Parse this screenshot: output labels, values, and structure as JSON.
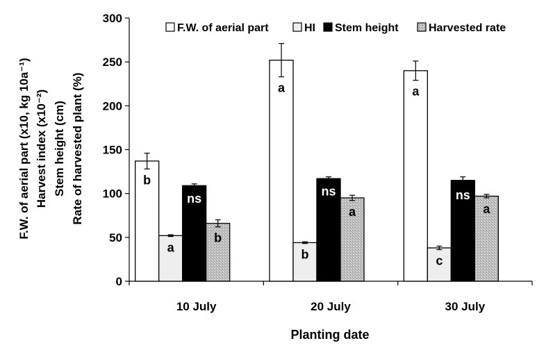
{
  "chart_data": {
    "type": "bar",
    "categories": [
      "10 July",
      "20 July",
      "30 July"
    ],
    "series": [
      {
        "name": "F.W. of aerial part",
        "values": [
          137,
          252,
          240
        ],
        "errors": [
          9,
          19,
          11
        ],
        "labels": [
          "b",
          "a",
          "a"
        ],
        "color": "#ffffff"
      },
      {
        "name": "HI",
        "values": [
          52,
          44,
          38
        ],
        "errors": [
          1,
          1,
          2
        ],
        "labels": [
          "a",
          "b",
          "c"
        ],
        "color": "#eeeeee"
      },
      {
        "name": "Stem height",
        "values": [
          109,
          117,
          115
        ],
        "errors": [
          2,
          2,
          4
        ],
        "labels": [
          "ns",
          "ns",
          "ns"
        ],
        "color": "#000000"
      },
      {
        "name": "Harvested rate",
        "values": [
          66,
          95,
          97
        ],
        "errors": [
          4,
          3,
          2
        ],
        "labels": [
          "b",
          "a",
          "a"
        ],
        "color": "#bdbdbd"
      }
    ],
    "xlabel": "Planting date",
    "ylabel_lines": [
      "F.W. of aerial part (x10, kg 10a⁻¹)",
      "Harvest index (x10⁻²)",
      "Stem height (cm)",
      "Rate of harvested plant (%)"
    ],
    "ylim": [
      0,
      300
    ],
    "yticks": [
      0,
      50,
      100,
      150,
      200,
      250,
      300
    ],
    "grid": false,
    "legend_position": "top"
  }
}
